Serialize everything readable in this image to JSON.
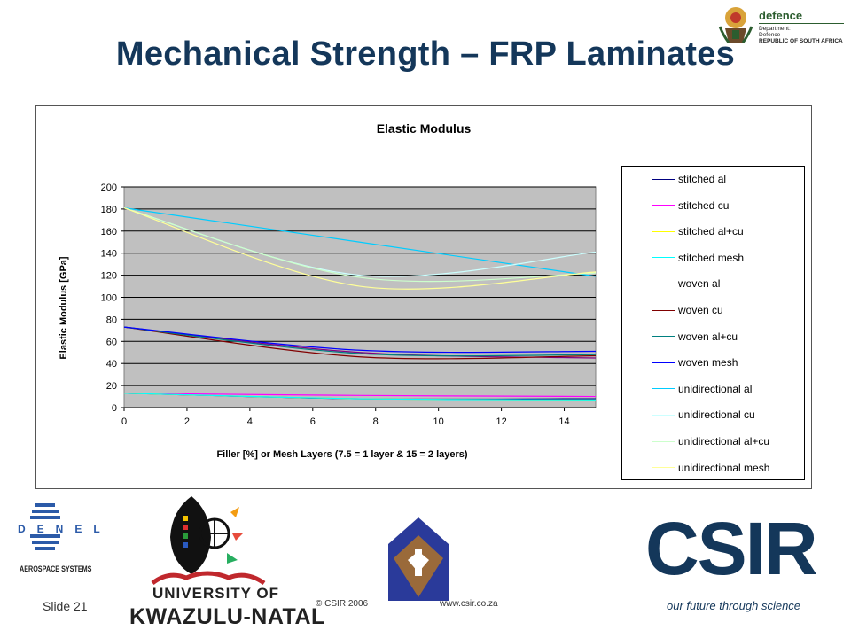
{
  "slide": {
    "title": "Mechanical Strength – FRP Laminates",
    "slide_number": "Slide 21",
    "copyright": "© CSIR  2006",
    "website": "www.csir.co.za"
  },
  "logos": {
    "defence": {
      "word": "defence",
      "lines": [
        "Department:",
        "Defence",
        "REPUBLIC OF SOUTH AFRICA"
      ]
    },
    "denel": {
      "word": "DENEL",
      "subtitle": "AEROSPACE SYSTEMS"
    },
    "ukzn": {
      "line1": "UNIVERSITY OF",
      "line2": "KWAZULU-NATAL"
    },
    "csir": {
      "word": "CSIR",
      "tagline": "our future through science"
    }
  },
  "chart_data": {
    "type": "line",
    "title": "Elastic Modulus",
    "xlabel": "Filler [%] or Mesh Layers (7.5 = 1 layer & 15 = 2 layers)",
    "ylabel": "Elastic Modulus [GPa]",
    "xlim": [
      0,
      15
    ],
    "ylim": [
      0,
      200
    ],
    "xticks": [
      0,
      2,
      4,
      6,
      8,
      10,
      12,
      14
    ],
    "yticks": [
      0,
      20,
      40,
      60,
      80,
      100,
      120,
      140,
      160,
      180,
      200
    ],
    "grid": "horizontal",
    "plot_background": "#c0c0c0",
    "legend_position": "right",
    "x": [
      0,
      7.5,
      15
    ],
    "series": [
      {
        "name": "stitched al",
        "color": "#000080",
        "values": [
          13,
          8,
          8
        ]
      },
      {
        "name": "stitched cu",
        "color": "#ff00ff",
        "values": [
          13,
          11,
          10
        ]
      },
      {
        "name": "stitched al+cu",
        "color": "#ffff00",
        "values": [
          13,
          8,
          7
        ]
      },
      {
        "name": "stitched mesh",
        "color": "#00ffff",
        "values": [
          13,
          8,
          7
        ]
      },
      {
        "name": "woven al",
        "color": "#800080",
        "values": [
          73,
          50,
          45
        ]
      },
      {
        "name": "woven cu",
        "color": "#800000",
        "values": [
          73,
          46,
          47
        ]
      },
      {
        "name": "woven al+cu",
        "color": "#008080",
        "values": [
          73,
          49,
          48
        ]
      },
      {
        "name": "woven mesh",
        "color": "#0000ff",
        "values": [
          73,
          52,
          51
        ]
      },
      {
        "name": "unidirectional al",
        "color": "#00ccff",
        "values": [
          181,
          150,
          119
        ]
      },
      {
        "name": "unidirectional cu",
        "color": "#ccffff",
        "values": [
          181,
          120,
          141
        ]
      },
      {
        "name": "unidirectional al+cu",
        "color": "#ccffcc",
        "values": [
          181,
          118,
          122
        ]
      },
      {
        "name": "unidirectional mesh",
        "color": "#ffff99",
        "values": [
          181,
          110,
          123
        ]
      }
    ]
  }
}
